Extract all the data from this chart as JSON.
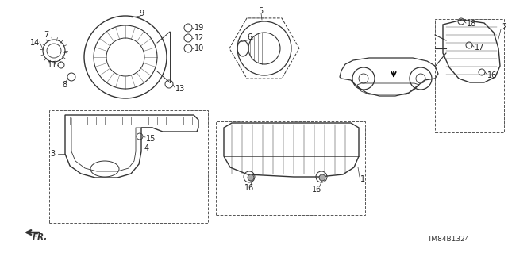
{
  "title": "",
  "background_color": "#ffffff",
  "diagram_code": "TM84B1324",
  "fig_width": 6.4,
  "fig_height": 3.19,
  "dpi": 100,
  "line_color": "#333333",
  "light_gray": "#888888",
  "label_fontsize": 7
}
